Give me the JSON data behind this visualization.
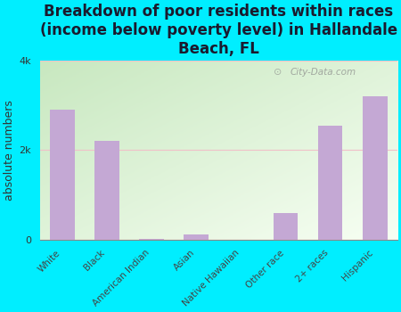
{
  "title": "Breakdown of poor residents within races\n(income below poverty level) in Hallandale\nBeach, FL",
  "categories": [
    "White",
    "Black",
    "American Indian",
    "Asian",
    "Native Hawaiian",
    "Other race",
    "2+ races",
    "Hispanic"
  ],
  "values": [
    2900,
    2200,
    20,
    120,
    0,
    600,
    2550,
    3200
  ],
  "bar_color": "#c4a8d4",
  "ylabel": "absolute numbers",
  "ylim": [
    0,
    4000
  ],
  "yticks": [
    0,
    2000,
    4000
  ],
  "ytick_labels": [
    "0",
    "2k",
    "4k"
  ],
  "outer_bg": "#00eeff",
  "watermark": "City-Data.com",
  "title_fontsize": 12,
  "ylabel_fontsize": 9,
  "grid_color": "#f0c0c8",
  "bg_color_topleft": "#c8e8c0",
  "bg_color_bottomright": "#f8fff4"
}
